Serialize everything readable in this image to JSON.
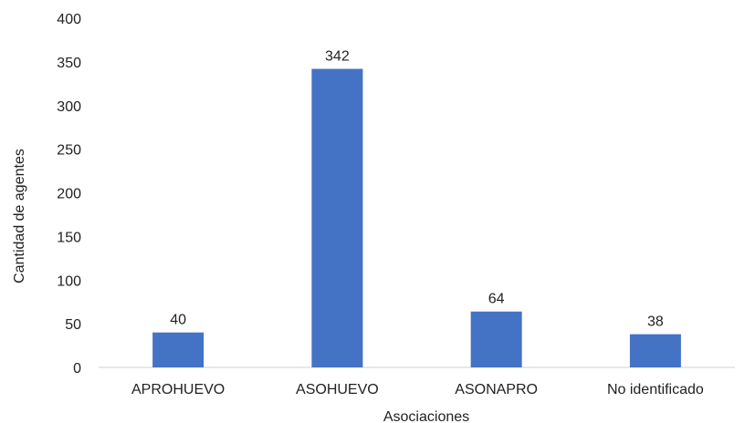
{
  "chart_data": {
    "type": "bar",
    "title": "",
    "xlabel": "Asociaciones",
    "ylabel": "Cantidad de agentes",
    "categories": [
      "APROHUEVO",
      "ASOHUEVO",
      "ASONAPRO",
      "No identificado"
    ],
    "values": [
      40,
      342,
      64,
      38
    ],
    "ylim": [
      0,
      400
    ],
    "yticks": [
      0,
      50,
      100,
      150,
      200,
      250,
      300,
      350,
      400
    ],
    "grid": false,
    "legend": "none",
    "bar_color": "#4472C4",
    "data_labels": true
  }
}
